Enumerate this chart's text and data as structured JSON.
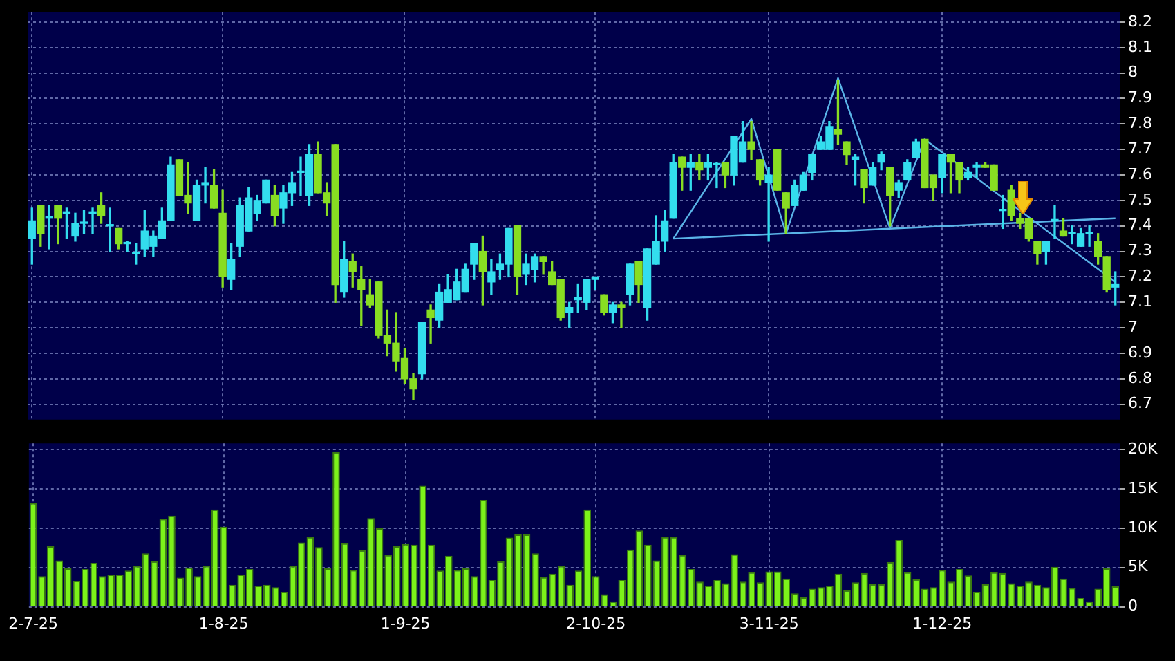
{
  "chart_data": [
    {
      "type": "candlestick",
      "categories": [
        null,
        null,
        null,
        null,
        null,
        null,
        null,
        null,
        null,
        null,
        null,
        null,
        null,
        null,
        null,
        null,
        null,
        null,
        null,
        null,
        null,
        null,
        null,
        null,
        null,
        null,
        null,
        null,
        null,
        null,
        null,
        null,
        null,
        null,
        null,
        null,
        null,
        null,
        null,
        null,
        null,
        null,
        null,
        null,
        null,
        null,
        null,
        null,
        null,
        null,
        null,
        null,
        null,
        null,
        null,
        null,
        null,
        null,
        null,
        null,
        null,
        null,
        null,
        null,
        null,
        null,
        null,
        null,
        null,
        null,
        null,
        null,
        null,
        null,
        null,
        null,
        null,
        null,
        null,
        null,
        null,
        null,
        null,
        null,
        null,
        null,
        null,
        null,
        null,
        null,
        null,
        null,
        null,
        null,
        null,
        null,
        null,
        null,
        null,
        null,
        null,
        null,
        null,
        null,
        null,
        null,
        null,
        null,
        null,
        null,
        null,
        null,
        null,
        null,
        null,
        null,
        null,
        null,
        null,
        null,
        null,
        null,
        null,
        null,
        null,
        null
      ],
      "ohlc": [
        [
          7.35,
          7.47,
          7.25,
          7.42
        ],
        [
          7.48,
          7.48,
          7.32,
          7.37
        ],
        [
          7.43,
          7.48,
          7.31,
          7.43
        ],
        [
          7.48,
          7.48,
          7.33,
          7.43
        ],
        [
          7.45,
          7.47,
          7.35,
          7.45
        ],
        [
          7.36,
          7.45,
          7.34,
          7.41
        ],
        [
          7.41,
          7.46,
          7.37,
          7.41
        ],
        [
          7.45,
          7.47,
          7.37,
          7.45
        ],
        [
          7.48,
          7.53,
          7.41,
          7.44
        ],
        [
          7.4,
          7.47,
          7.3,
          7.4
        ],
        [
          7.39,
          7.39,
          7.31,
          7.33
        ],
        [
          7.33,
          7.34,
          7.3,
          7.33
        ],
        [
          7.29,
          7.33,
          7.25,
          7.29
        ],
        [
          7.31,
          7.46,
          7.28,
          7.38
        ],
        [
          7.32,
          7.38,
          7.28,
          7.36
        ],
        [
          7.35,
          7.47,
          7.35,
          7.42
        ],
        [
          7.42,
          7.67,
          7.42,
          7.64
        ],
        [
          7.66,
          7.66,
          7.52,
          7.52
        ],
        [
          7.52,
          7.65,
          7.45,
          7.49
        ],
        [
          7.42,
          7.58,
          7.42,
          7.56
        ],
        [
          7.56,
          7.63,
          7.49,
          7.57
        ],
        [
          7.56,
          7.62,
          7.47,
          7.47
        ],
        [
          7.45,
          7.54,
          7.16,
          7.2
        ],
        [
          7.19,
          7.33,
          7.15,
          7.27
        ],
        [
          7.32,
          7.51,
          7.28,
          7.48
        ],
        [
          7.38,
          7.55,
          7.38,
          7.51
        ],
        [
          7.45,
          7.52,
          7.42,
          7.5
        ],
        [
          7.49,
          7.58,
          7.49,
          7.58
        ],
        [
          7.52,
          7.56,
          7.4,
          7.44
        ],
        [
          7.47,
          7.56,
          7.41,
          7.53
        ],
        [
          7.53,
          7.61,
          7.48,
          7.57
        ],
        [
          7.61,
          7.67,
          7.52,
          7.61
        ],
        [
          7.52,
          7.72,
          7.48,
          7.68
        ],
        [
          7.68,
          7.73,
          7.53,
          7.53
        ],
        [
          7.53,
          7.57,
          7.44,
          7.49
        ],
        [
          7.72,
          7.72,
          7.1,
          7.17
        ],
        [
          7.14,
          7.34,
          7.12,
          7.27
        ],
        [
          7.26,
          7.29,
          7.16,
          7.22
        ],
        [
          7.19,
          7.24,
          7.01,
          7.15
        ],
        [
          7.13,
          7.19,
          7.08,
          7.09
        ],
        [
          7.18,
          7.18,
          6.96,
          6.97
        ],
        [
          6.97,
          7.07,
          6.89,
          6.94
        ],
        [
          6.94,
          7.06,
          6.83,
          6.87
        ],
        [
          6.88,
          6.92,
          6.78,
          6.8
        ],
        [
          6.8,
          6.82,
          6.72,
          6.76
        ],
        [
          6.82,
          7.02,
          6.8,
          7.02
        ],
        [
          7.07,
          7.09,
          6.94,
          7.04
        ],
        [
          7.03,
          7.17,
          7.0,
          7.14
        ],
        [
          7.1,
          7.21,
          7.1,
          7.15
        ],
        [
          7.11,
          7.23,
          7.11,
          7.18
        ],
        [
          7.14,
          7.25,
          7.14,
          7.23
        ],
        [
          7.25,
          7.33,
          7.19,
          7.33
        ],
        [
          7.3,
          7.36,
          7.09,
          7.22
        ],
        [
          7.18,
          7.27,
          7.13,
          7.22
        ],
        [
          7.23,
          7.29,
          7.19,
          7.25
        ],
        [
          7.25,
          7.39,
          7.2,
          7.39
        ],
        [
          7.4,
          7.4,
          7.13,
          7.2
        ],
        [
          7.21,
          7.29,
          7.17,
          7.25
        ],
        [
          7.23,
          7.29,
          7.18,
          7.28
        ],
        [
          7.28,
          7.28,
          7.21,
          7.26
        ],
        [
          7.22,
          7.26,
          7.17,
          7.17
        ],
        [
          7.19,
          7.19,
          7.03,
          7.04
        ],
        [
          7.06,
          7.1,
          7.0,
          7.08
        ],
        [
          7.11,
          7.17,
          7.06,
          7.12
        ],
        [
          7.1,
          7.19,
          7.07,
          7.19
        ],
        [
          7.19,
          7.2,
          7.15,
          7.2
        ],
        [
          7.13,
          7.13,
          7.05,
          7.06
        ],
        [
          7.06,
          7.1,
          7.02,
          7.09
        ],
        [
          7.09,
          7.1,
          7.0,
          7.08
        ],
        [
          7.13,
          7.25,
          7.09,
          7.25
        ],
        [
          7.26,
          7.26,
          7.1,
          7.17
        ],
        [
          7.08,
          7.31,
          7.03,
          7.31
        ],
        [
          7.25,
          7.44,
          7.25,
          7.34
        ],
        [
          7.34,
          7.46,
          7.3,
          7.42
        ],
        [
          7.43,
          7.68,
          7.43,
          7.65
        ],
        [
          7.67,
          7.67,
          7.54,
          7.63
        ],
        [
          7.63,
          7.68,
          7.54,
          7.65
        ],
        [
          7.65,
          7.68,
          7.58,
          7.62
        ],
        [
          7.63,
          7.68,
          7.58,
          7.65
        ],
        [
          7.64,
          7.65,
          7.55,
          7.64
        ],
        [
          7.65,
          7.65,
          7.55,
          7.6
        ],
        [
          7.6,
          7.75,
          7.56,
          7.75
        ],
        [
          7.65,
          7.81,
          7.65,
          7.73
        ],
        [
          7.73,
          7.81,
          7.66,
          7.7
        ],
        [
          7.66,
          7.66,
          7.56,
          7.58
        ],
        [
          7.57,
          7.63,
          7.34,
          7.6
        ],
        [
          7.7,
          7.7,
          7.54,
          7.54
        ],
        [
          7.53,
          7.53,
          7.37,
          7.47
        ],
        [
          7.48,
          7.58,
          7.48,
          7.56
        ],
        [
          7.54,
          7.61,
          7.54,
          7.6
        ],
        [
          7.61,
          7.68,
          7.58,
          7.68
        ],
        [
          7.7,
          7.75,
          7.7,
          7.73
        ],
        [
          7.7,
          7.81,
          7.7,
          7.79
        ],
        [
          7.78,
          7.97,
          7.72,
          7.76
        ],
        [
          7.73,
          7.73,
          7.64,
          7.68
        ],
        [
          7.66,
          7.68,
          7.56,
          7.67
        ],
        [
          7.62,
          7.62,
          7.49,
          7.55
        ],
        [
          7.56,
          7.65,
          7.56,
          7.63
        ],
        [
          7.65,
          7.69,
          7.62,
          7.68
        ],
        [
          7.63,
          7.63,
          7.4,
          7.52
        ],
        [
          7.54,
          7.58,
          7.51,
          7.57
        ],
        [
          7.58,
          7.66,
          7.58,
          7.65
        ],
        [
          7.67,
          7.74,
          7.67,
          7.73
        ],
        [
          7.74,
          7.74,
          7.55,
          7.55
        ],
        [
          7.6,
          7.6,
          7.5,
          7.55
        ],
        [
          7.59,
          7.68,
          7.53,
          7.68
        ],
        [
          7.68,
          7.68,
          7.53,
          7.65
        ],
        [
          7.65,
          7.65,
          7.53,
          7.58
        ],
        [
          7.59,
          7.63,
          7.58,
          7.61
        ],
        [
          7.63,
          7.65,
          7.59,
          7.64
        ],
        [
          7.64,
          7.65,
          7.63,
          7.63
        ],
        [
          7.64,
          7.64,
          7.54,
          7.54
        ],
        [
          7.46,
          7.52,
          7.39,
          7.46
        ],
        [
          7.54,
          7.56,
          7.42,
          7.44
        ],
        [
          7.43,
          7.45,
          7.39,
          7.41
        ],
        [
          7.43,
          7.43,
          7.34,
          7.35
        ],
        [
          7.34,
          7.34,
          7.25,
          7.29
        ],
        [
          7.3,
          7.34,
          7.25,
          7.34
        ],
        [
          7.42,
          7.48,
          7.35,
          7.42
        ],
        [
          7.38,
          7.43,
          7.36,
          7.36
        ],
        [
          7.37,
          7.4,
          7.33,
          7.37
        ],
        [
          7.32,
          7.39,
          7.32,
          7.37
        ],
        [
          7.37,
          7.4,
          7.32,
          7.37
        ],
        [
          7.34,
          7.37,
          7.25,
          7.28
        ],
        [
          7.28,
          7.28,
          7.14,
          7.15
        ],
        [
          7.16,
          7.22,
          7.09,
          7.17
        ]
      ],
      "colors": [
        "#33ddee",
        "#88dd22",
        "#33ddee",
        "#88dd22",
        "#33ddee",
        "#33ddee",
        "#33ddee",
        "#33ddee",
        "#88dd22",
        "#33ddee",
        "#88dd22",
        "#33ddee",
        "#33ddee",
        "#33ddee",
        "#33ddee",
        "#33ddee",
        "#33ddee",
        "#88dd22",
        "#88dd22",
        "#33ddee",
        "#33ddee",
        "#88dd22",
        "#88dd22",
        "#33ddee",
        "#33ddee",
        "#33ddee",
        "#33ddee",
        "#33ddee",
        "#88dd22",
        "#33ddee",
        "#33ddee",
        "#33ddee",
        "#33ddee",
        "#88dd22",
        "#88dd22",
        "#88dd22",
        "#33ddee",
        "#88dd22",
        "#88dd22",
        "#88dd22",
        "#88dd22",
        "#88dd22",
        "#88dd22",
        "#88dd22",
        "#88dd22",
        "#33ddee",
        "#88dd22",
        "#33ddee",
        "#33ddee",
        "#33ddee",
        "#33ddee",
        "#33ddee",
        "#88dd22",
        "#33ddee",
        "#33ddee",
        "#33ddee",
        "#88dd22",
        "#33ddee",
        "#33ddee",
        "#88dd22",
        "#88dd22",
        "#88dd22",
        "#33ddee",
        "#33ddee",
        "#33ddee",
        "#33ddee",
        "#88dd22",
        "#33ddee",
        "#88dd22",
        "#33ddee",
        "#88dd22",
        "#33ddee",
        "#33ddee",
        "#33ddee",
        "#33ddee",
        "#88dd22",
        "#33ddee",
        "#88dd22",
        "#33ddee",
        "#33ddee",
        "#88dd22",
        "#33ddee",
        "#33ddee",
        "#88dd22",
        "#88dd22",
        "#33ddee",
        "#88dd22",
        "#88dd22",
        "#33ddee",
        "#33ddee",
        "#33ddee",
        "#33ddee",
        "#33ddee",
        "#88dd22",
        "#88dd22",
        "#33ddee",
        "#88dd22",
        "#33ddee",
        "#33ddee",
        "#88dd22",
        "#33ddee",
        "#33ddee",
        "#33ddee",
        "#88dd22",
        "#88dd22",
        "#33ddee",
        "#88dd22",
        "#88dd22",
        "#33ddee",
        "#33ddee",
        "#88dd22",
        "#88dd22",
        "#33ddee",
        "#88dd22",
        "#88dd22",
        "#88dd22",
        "#88dd22",
        "#33ddee",
        "#33ddee",
        "#88dd22",
        "#33ddee",
        "#33ddee",
        "#33ddee",
        "#88dd22",
        "#88dd22",
        "#33ddee"
      ],
      "series": [
        {
          "type": "line",
          "color": "#5ab4e8",
          "values": [
            null,
            null,
            null,
            null,
            null,
            null,
            null,
            null,
            null,
            null,
            null,
            null,
            null,
            null,
            null,
            null,
            null,
            null,
            null,
            null,
            null,
            null,
            null,
            null,
            null,
            null,
            null,
            null,
            null,
            null,
            null,
            null,
            null,
            null,
            null,
            null,
            null,
            null,
            null,
            null,
            null,
            null,
            null,
            null,
            null,
            null,
            null,
            null,
            null,
            null,
            null,
            null,
            null,
            null,
            null,
            null,
            null,
            null,
            null,
            null,
            null,
            null,
            null,
            null,
            null,
            null,
            null,
            null,
            null,
            null,
            null,
            null,
            null,
            null,
            7.35,
            null,
            null,
            null,
            null,
            null,
            null,
            null,
            null,
            7.82,
            null,
            null,
            null,
            7.37,
            null,
            null,
            null,
            null,
            null,
            7.98,
            null,
            null,
            null,
            null,
            null,
            7.39,
            null,
            null,
            null,
            7.74,
            null,
            null,
            null,
            null,
            null,
            null,
            null,
            null,
            null,
            null,
            null,
            null,
            null,
            null,
            null,
            null,
            null,
            null,
            null,
            null,
            null,
            7.18
          ]
        },
        {
          "type": "line",
          "color": "#5ab4e8",
          "values": [
            null,
            null,
            null,
            null,
            null,
            null,
            null,
            null,
            null,
            null,
            null,
            null,
            null,
            null,
            null,
            null,
            null,
            null,
            null,
            null,
            null,
            null,
            null,
            null,
            null,
            null,
            null,
            null,
            null,
            null,
            null,
            null,
            null,
            null,
            null,
            null,
            null,
            null,
            null,
            null,
            null,
            null,
            null,
            null,
            null,
            null,
            null,
            null,
            null,
            null,
            null,
            null,
            null,
            null,
            null,
            null,
            null,
            null,
            null,
            null,
            null,
            null,
            null,
            null,
            null,
            null,
            null,
            null,
            null,
            null,
            null,
            null,
            null,
            null,
            7.35,
            null,
            null,
            null,
            null,
            null,
            null,
            null,
            null,
            null,
            null,
            null,
            null,
            null,
            null,
            null,
            null,
            null,
            null,
            null,
            null,
            null,
            null,
            null,
            null,
            null,
            null,
            null,
            null,
            null,
            null,
            null,
            null,
            null,
            null,
            null,
            null,
            null,
            null,
            null,
            null,
            null,
            null,
            null,
            null,
            null,
            null,
            null,
            null,
            null,
            null,
            7.43
          ]
        }
      ],
      "ylim": [
        6.64,
        8.24
      ],
      "yticks": [
        6.7,
        6.8,
        6.9,
        7,
        7.1,
        7.2,
        7.3,
        7.4,
        7.5,
        7.6,
        7.7,
        7.8,
        7.9,
        8,
        8.1,
        8.2
      ],
      "grid": true,
      "tick_labels": "y"
    },
    {
      "type": "bar",
      "categories": [
        "2-7-25",
        null,
        null,
        null,
        null,
        null,
        null,
        null,
        null,
        null,
        null,
        null,
        null,
        null,
        null,
        null,
        null,
        null,
        null,
        null,
        null,
        null,
        "1-8-25",
        null,
        null,
        null,
        null,
        null,
        null,
        null,
        null,
        null,
        null,
        null,
        null,
        null,
        null,
        null,
        null,
        null,
        null,
        null,
        null,
        "1-9-25",
        null,
        null,
        null,
        null,
        null,
        null,
        null,
        null,
        null,
        null,
        null,
        null,
        null,
        null,
        null,
        null,
        null,
        null,
        null,
        null,
        null,
        "2-10-25",
        null,
        null,
        null,
        null,
        null,
        null,
        null,
        null,
        null,
        null,
        null,
        null,
        null,
        null,
        null,
        null,
        null,
        null,
        null,
        "3-11-25",
        null,
        null,
        null,
        null,
        null,
        null,
        null,
        null,
        null,
        null,
        null,
        null,
        null,
        null,
        null,
        null,
        null,
        null,
        null,
        "1-12-25",
        null,
        null,
        null,
        null,
        null,
        null,
        null,
        null,
        null,
        null,
        null,
        null,
        null,
        null,
        null,
        null,
        null,
        null,
        null,
        null
      ],
      "values": [
        13.2,
        3.9,
        7.7,
        5.9,
        4.9,
        3.3,
        4.8,
        5.6,
        3.9,
        4.1,
        4.1,
        4.6,
        5.2,
        6.8,
        5.8,
        11.2,
        11.6,
        3.7,
        5.0,
        3.9,
        5.2,
        12.4,
        10.2,
        2.8,
        4.1,
        4.8,
        2.7,
        2.8,
        2.5,
        1.9,
        5.2,
        8.2,
        8.9,
        7.6,
        4.9,
        19.7,
        8.1,
        4.7,
        7.2,
        11.3,
        10.0,
        6.6,
        7.7,
        8.0,
        7.9,
        15.4,
        7.9,
        4.6,
        6.5,
        4.7,
        4.9,
        3.9,
        13.6,
        3.4,
        5.8,
        8.8,
        9.2,
        9.2,
        6.8,
        3.8,
        4.2,
        5.2,
        2.8,
        4.6,
        12.4,
        3.9,
        1.6,
        0.7,
        3.4,
        7.3,
        9.7,
        7.9,
        5.9,
        8.9,
        8.9,
        6.6,
        4.8,
        3.2,
        2.7,
        3.4,
        3.0,
        6.7,
        3.2,
        4.4,
        3.1,
        4.5,
        4.5,
        3.6,
        1.7,
        1.2,
        2.3,
        2.5,
        2.7,
        4.2,
        2.1,
        3.1,
        4.3,
        2.9,
        2.9,
        5.7,
        8.5,
        4.4,
        3.5,
        2.3,
        2.5,
        4.7,
        3.2,
        4.8,
        4.0,
        1.9,
        2.9,
        4.4,
        4.3,
        3.0,
        2.7,
        3.2,
        2.8,
        2.5,
        5.1,
        3.6,
        2.4,
        1.1,
        0.7,
        2.3,
        4.9,
        2.6
      ],
      "color": "#7cf21a",
      "ylim": [
        0,
        20.8
      ],
      "yticks": [
        0,
        {
          "value": 5,
          "label": "5K"
        },
        {
          "value": 10,
          "label": "10K"
        },
        {
          "value": 15,
          "label": "15K"
        },
        {
          "value": 20,
          "label": "20K"
        }
      ],
      "grid": true
    }
  ]
}
